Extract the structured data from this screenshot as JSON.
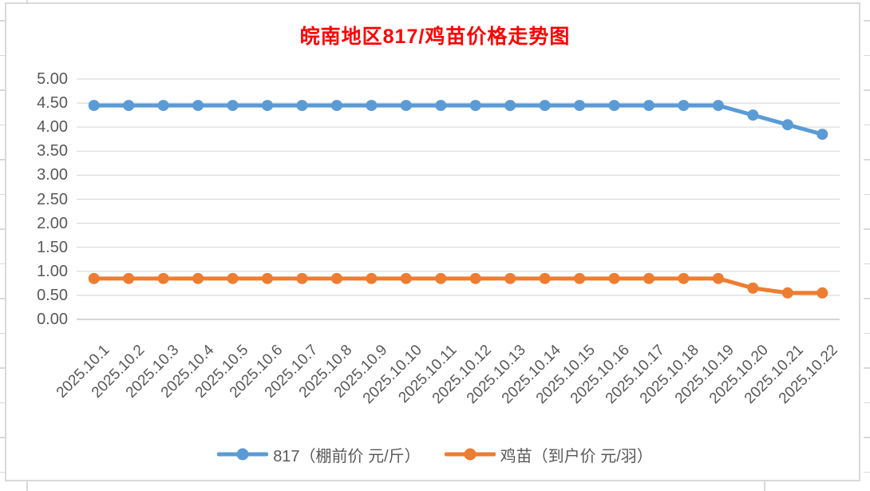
{
  "title": "皖南地区817/鸡苗价格走势图",
  "colors": {
    "title": "#FF0000",
    "axis_text": "#595959",
    "gridline": "#DADADA",
    "axis_line": "#C9C9C9",
    "series_817": "#5B9BD5",
    "series_jimiao": "#ED7D31"
  },
  "chart_data": {
    "type": "line",
    "title": "皖南地区817/鸡苗价格走势图",
    "categories": [
      "2025.10.1",
      "2025.10.2",
      "2025.10.3",
      "2025.10.4",
      "2025.10.5",
      "2025.10.6",
      "2025.10.7",
      "2025.10.8",
      "2025.10.9",
      "2025.10.10",
      "2025.10.11",
      "2025.10.12",
      "2025.10.13",
      "2025.10.14",
      "2025.10.15",
      "2025.10.16",
      "2025.10.17",
      "2025.10.18",
      "2025.10.19",
      "2025.10.20",
      "2025.10.21",
      "2025.10.22"
    ],
    "series": [
      {
        "name": "817（棚前价 元/斤）",
        "color": "#5B9BD5",
        "values": [
          4.45,
          4.45,
          4.45,
          4.45,
          4.45,
          4.45,
          4.45,
          4.45,
          4.45,
          4.45,
          4.45,
          4.45,
          4.45,
          4.45,
          4.45,
          4.45,
          4.45,
          4.45,
          4.45,
          4.25,
          4.05,
          3.85
        ]
      },
      {
        "name": "鸡苗（到户价 元/羽）",
        "color": "#ED7D31",
        "values": [
          0.85,
          0.85,
          0.85,
          0.85,
          0.85,
          0.85,
          0.85,
          0.85,
          0.85,
          0.85,
          0.85,
          0.85,
          0.85,
          0.85,
          0.85,
          0.85,
          0.85,
          0.85,
          0.85,
          0.65,
          0.55,
          0.55
        ]
      }
    ],
    "xlabel": "",
    "ylabel": "",
    "ylim": [
      0,
      5
    ],
    "ytick_step": 0.5,
    "ytick_labels": [
      "0.00",
      "0.50",
      "1.00",
      "1.50",
      "2.00",
      "2.50",
      "3.00",
      "3.50",
      "4.00",
      "4.50",
      "5.00"
    ],
    "grid": true,
    "legend_position": "bottom",
    "x_label_rotation_deg": 45
  }
}
